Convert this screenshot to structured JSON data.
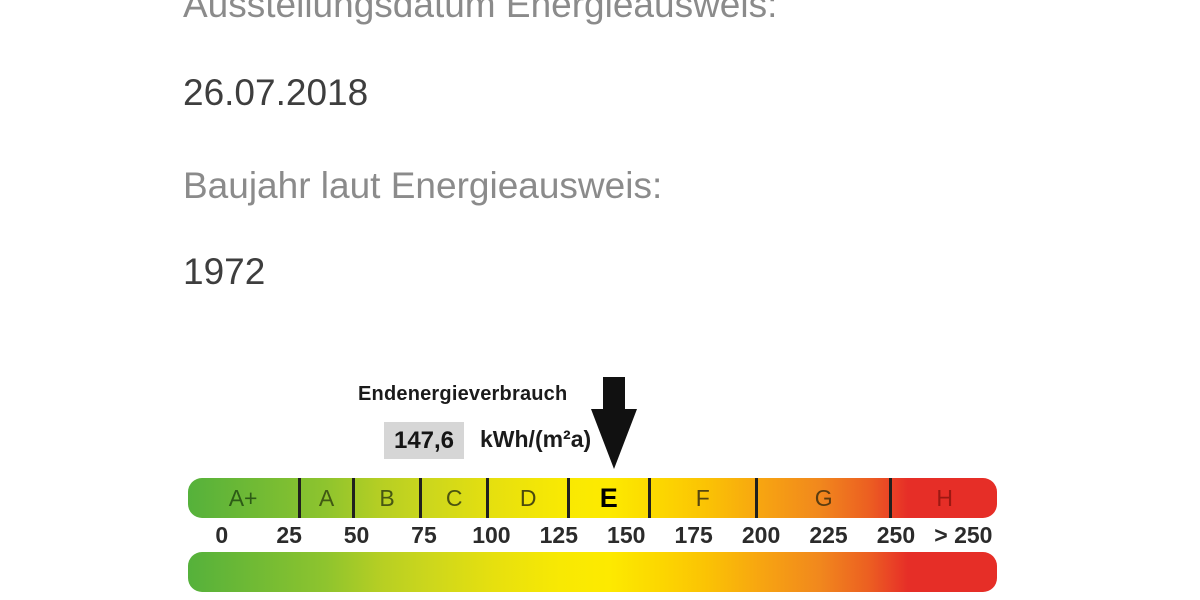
{
  "document": {
    "fields": [
      {
        "label": "Ausstellungsdatum Energieausweis:",
        "value": "26.07.2018"
      },
      {
        "label": "Baujahr laut Energieausweis:",
        "value": "1972"
      }
    ]
  },
  "chart_data": {
    "type": "linear-gauge",
    "title": "Endenergieverbrauch",
    "value": 147.6,
    "value_display": "147,6",
    "unit": "kWh/(m²a)",
    "current_class": "E",
    "scale_min": -11,
    "scale_max": 290,
    "bands": [
      {
        "label": "A+",
        "from": 0,
        "to": 30,
        "letter_color": "#2d5b16"
      },
      {
        "label": "A",
        "from": 30,
        "to": 50,
        "letter_color": "#415913"
      },
      {
        "label": "B",
        "from": 50,
        "to": 75,
        "letter_color": "#475713"
      },
      {
        "label": "C",
        "from": 75,
        "to": 100,
        "letter_color": "#4b5410"
      },
      {
        "label": "D",
        "from": 100,
        "to": 130,
        "letter_color": "#4a4a0e"
      },
      {
        "label": "E",
        "from": 130,
        "to": 160,
        "letter_color": "#000000",
        "highlight": true
      },
      {
        "label": "F",
        "from": 160,
        "to": 200,
        "letter_color": "#55450f"
      },
      {
        "label": "G",
        "from": 200,
        "to": 250,
        "letter_color": "#5a3c10"
      },
      {
        "label": "H",
        "from": 250,
        "to": null,
        "letter_color": "#9c1812"
      }
    ],
    "ticks": [
      "0",
      "25",
      "50",
      "75",
      "100",
      "125",
      "150",
      "175",
      "200",
      "225",
      "250",
      "> 250"
    ],
    "gradient": [
      {
        "pos": 0,
        "color": "#55b13b"
      },
      {
        "pos": 10,
        "color": "#76bc33"
      },
      {
        "pos": 17,
        "color": "#8ec42e"
      },
      {
        "pos": 24,
        "color": "#b7cf23"
      },
      {
        "pos": 30,
        "color": "#cdd71c"
      },
      {
        "pos": 38,
        "color": "#e7e00e"
      },
      {
        "pos": 46,
        "color": "#f8e903"
      },
      {
        "pos": 52,
        "color": "#fdea00"
      },
      {
        "pos": 58,
        "color": "#fcd800"
      },
      {
        "pos": 64,
        "color": "#fbc304"
      },
      {
        "pos": 71,
        "color": "#f7a411"
      },
      {
        "pos": 78,
        "color": "#f1881d"
      },
      {
        "pos": 84,
        "color": "#ec6021"
      },
      {
        "pos": 87,
        "color": "#e94226"
      },
      {
        "pos": 89,
        "color": "#e62e27"
      },
      {
        "pos": 100,
        "color": "#e62e27"
      }
    ],
    "colors": {
      "divider": "#20201e",
      "arrow": "#111111",
      "value_box_bg": "#d6d6d6",
      "tick_text": "#2b2b2b"
    }
  }
}
